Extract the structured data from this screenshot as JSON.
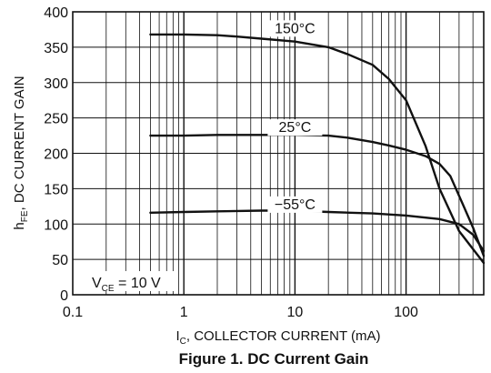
{
  "caption": "Figure 1. DC Current Gain",
  "chart_data": {
    "type": "line",
    "x_scale": "log",
    "xlim": [
      0.1,
      500
    ],
    "ylim": [
      0,
      400
    ],
    "x_tick_labels": [
      "0.1",
      "1",
      "10",
      "100"
    ],
    "x_ticks": [
      0.1,
      1,
      10,
      100
    ],
    "y_ticks": [
      0,
      50,
      100,
      150,
      200,
      250,
      300,
      350,
      400
    ],
    "y_tick_labels": [
      "0",
      "50",
      "100",
      "150",
      "200",
      "250",
      "300",
      "350",
      "400"
    ],
    "grid": true,
    "xlabel": {
      "main": "I",
      "sub": "C",
      "rest": ", COLLECTOR CURRENT (mA)"
    },
    "ylabel": {
      "main": "h",
      "sub": "FE",
      "rest": ", DC CURRENT GAIN"
    },
    "annotation": {
      "main": "V",
      "sub": "CE",
      "rest": " = 10 V"
    },
    "series": [
      {
        "name": "150°C",
        "x": [
          0.5,
          1,
          2,
          3,
          5,
          10,
          20,
          30,
          50,
          70,
          100,
          150,
          200,
          300,
          500
        ],
        "y": [
          368,
          368,
          367,
          365,
          362,
          358,
          350,
          340,
          325,
          305,
          275,
          210,
          150,
          90,
          45
        ]
      },
      {
        "name": "25°C",
        "x": [
          0.5,
          1,
          2,
          5,
          10,
          20,
          30,
          50,
          70,
          100,
          150,
          200,
          250,
          300,
          400,
          500
        ],
        "y": [
          225,
          225,
          226,
          226,
          226,
          225,
          222,
          216,
          211,
          205,
          196,
          185,
          168,
          140,
          95,
          55
        ]
      },
      {
        "name": "−55°C",
        "x": [
          0.5,
          1,
          2,
          5,
          10,
          20,
          50,
          100,
          200,
          300,
          400,
          500
        ],
        "y": [
          116,
          117,
          118,
          119,
          119,
          117,
          115,
          112,
          107,
          100,
          85,
          62
        ]
      }
    ]
  }
}
